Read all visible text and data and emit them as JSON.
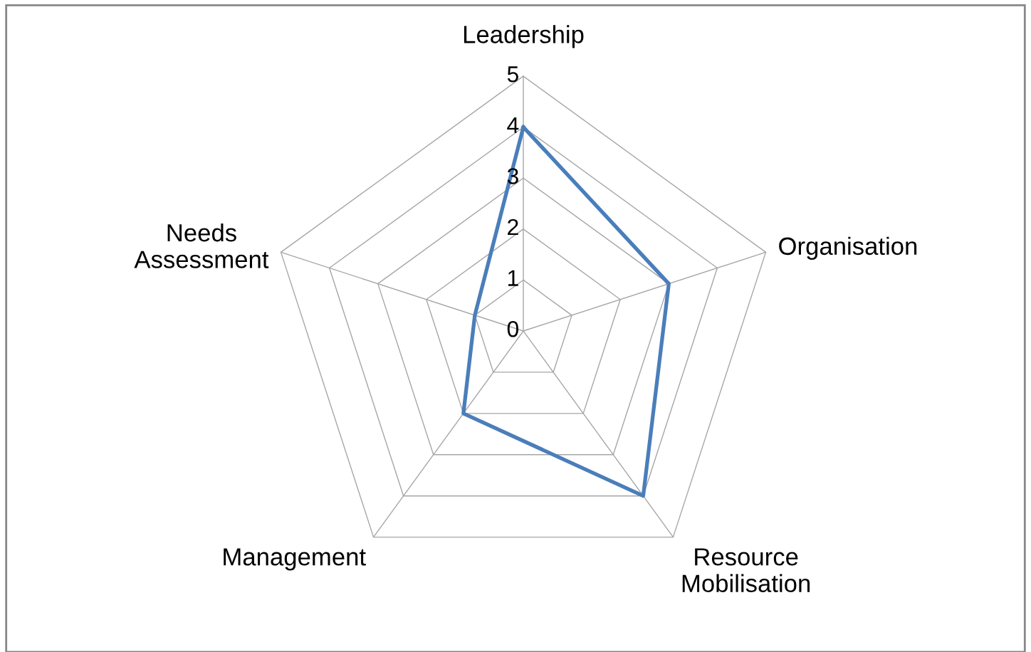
{
  "chart_data": {
    "type": "radar",
    "categories": [
      "Leadership",
      "Organisation",
      "Resource\nMobilisation",
      "Management",
      "Needs\nAssessment"
    ],
    "series": [
      {
        "color": "#4a7ebb",
        "values": [
          4,
          3,
          4,
          2,
          1
        ]
      }
    ],
    "ylim": [
      0,
      5
    ],
    "yticks": [
      0,
      1,
      2,
      3,
      4,
      5
    ],
    "grid": true
  }
}
